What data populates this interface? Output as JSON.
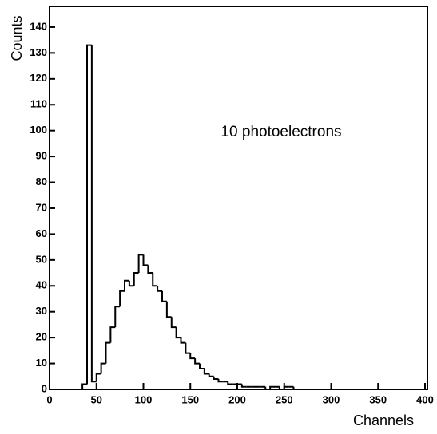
{
  "chart_data": {
    "type": "histogram",
    "xlabel": "Channels",
    "ylabel": "Counts",
    "annotation": "10 photoelectrons",
    "bins": [
      35,
      40,
      45,
      50,
      55,
      60,
      65,
      70,
      75,
      80,
      85,
      90,
      95,
      100,
      105,
      110,
      115,
      120,
      125,
      130,
      135,
      140,
      145,
      150,
      155,
      160,
      165,
      170,
      175,
      180,
      185,
      190,
      195,
      200,
      205,
      210,
      215,
      220,
      225,
      230,
      235,
      240,
      245,
      250,
      255,
      260,
      265
    ],
    "counts": [
      2,
      133,
      3,
      6,
      10,
      18,
      24,
      32,
      38,
      42,
      40,
      45,
      52,
      48,
      45,
      40,
      38,
      34,
      28,
      24,
      20,
      18,
      14,
      12,
      10,
      8,
      6,
      5,
      4,
      3,
      3,
      2,
      2,
      2,
      1,
      1,
      1,
      1,
      1,
      0,
      1,
      1,
      0,
      1,
      1,
      0
    ],
    "color": "#000000",
    "xlim": [
      0,
      400
    ],
    "xticks": [
      0,
      50,
      100,
      150,
      200,
      250,
      300,
      350,
      400
    ],
    "ylim": [
      0,
      148
    ],
    "yticks": [
      0,
      10,
      20,
      30,
      40,
      50,
      60,
      70,
      80,
      90,
      100,
      110,
      120,
      130,
      140
    ],
    "grid": false
  }
}
